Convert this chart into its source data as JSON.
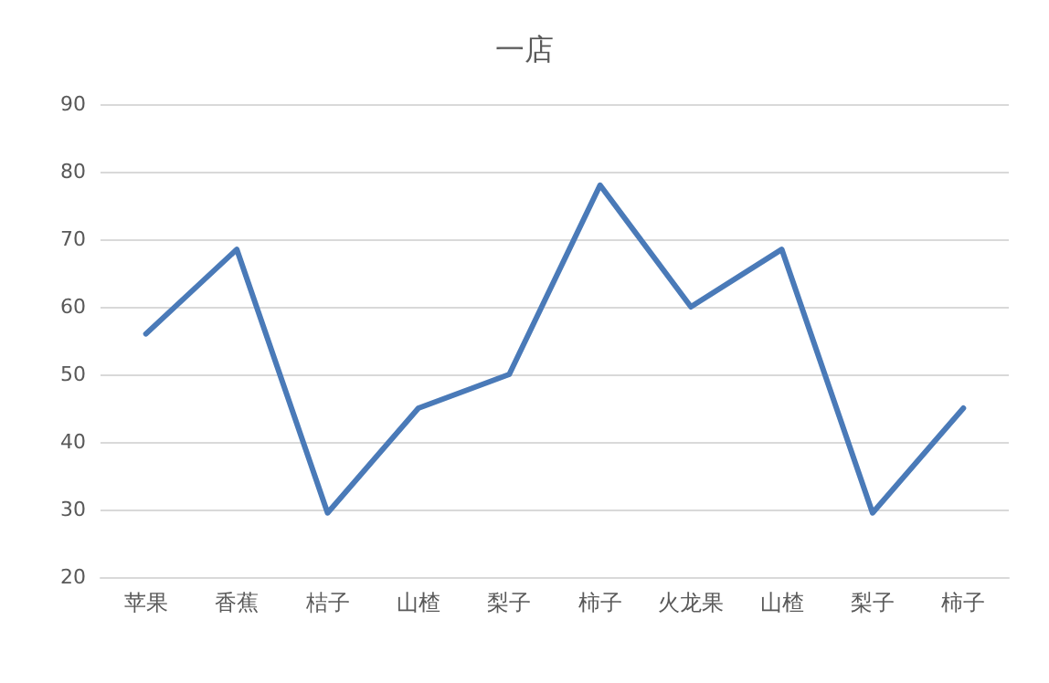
{
  "chart_data": {
    "type": "line",
    "title": "一店",
    "categories": [
      "苹果",
      "香蕉",
      "桔子",
      "山楂",
      "梨子",
      "柿子",
      "火龙果",
      "山楂",
      "梨子",
      "柿子"
    ],
    "series": [
      {
        "color": "#4a7ab8",
        "values": [
          56,
          68.5,
          29.5,
          45,
          50,
          78,
          60,
          68.5,
          29.5,
          45
        ]
      }
    ],
    "ylim": [
      20,
      90
    ],
    "yticks": [
      20,
      30,
      40,
      50,
      60,
      70,
      80,
      90
    ],
    "grid": "y",
    "marker": "none",
    "line_style": "solid"
  }
}
